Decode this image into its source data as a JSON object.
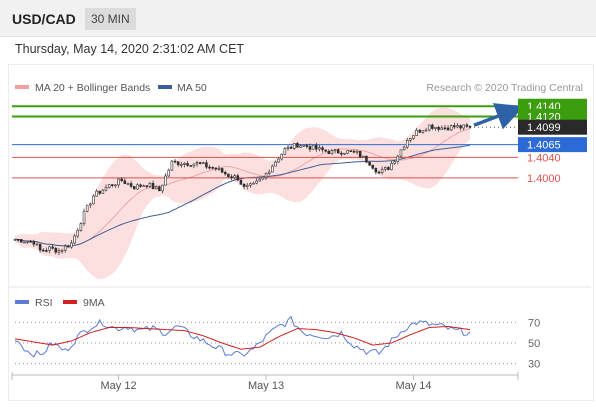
{
  "header": {
    "symbol": "USD/CAD",
    "timeframe": "30 MIN"
  },
  "date_text": "Thursday, May 14, 2020 2:31:02 AM CET",
  "colors": {
    "resistance": "#3c9d0e",
    "pivot": "#2c6bd6",
    "support": "#d9534f",
    "ma20": "#f0a0a0",
    "ma50": "#3e5f96",
    "band_fill": "#fbd9d9",
    "candle": "#2e2e2e",
    "rsi": "#5b7bd5",
    "rsi_ma": "#d02020",
    "current_price_bg": "#2a2a2a",
    "arrow": "#2e62a6"
  },
  "chart_data": [
    {
      "type": "candlestick",
      "legend": [
        {
          "label": "MA 20 + Bollinger Bands",
          "color": "#f0a0a0"
        },
        {
          "label": "MA 50",
          "color": "#3e5f96"
        }
      ],
      "watermark": "Research © 2020 Trading Central",
      "ylim": [
        1.382,
        1.416
      ],
      "x_ticks": [
        {
          "label": "May 12",
          "index": 33
        },
        {
          "label": "May 13",
          "index": 80
        },
        {
          "label": "May 14",
          "index": 127
        }
      ],
      "n_bars": 146,
      "price_path": [
        [
          0,
          1.388
        ],
        [
          6,
          1.3875
        ],
        [
          8,
          1.3858
        ],
        [
          11,
          1.3862
        ],
        [
          14,
          1.3858
        ],
        [
          18,
          1.3872
        ],
        [
          22,
          1.393
        ],
        [
          25,
          1.3965
        ],
        [
          30,
          1.3985
        ],
        [
          34,
          1.3995
        ],
        [
          38,
          1.3982
        ],
        [
          42,
          1.3988
        ],
        [
          46,
          1.3975
        ],
        [
          50,
          1.403
        ],
        [
          58,
          1.4028
        ],
        [
          64,
          1.4018
        ],
        [
          68,
          1.4005
        ],
        [
          71,
          1.4
        ],
        [
          73,
          1.398
        ],
        [
          76,
          1.3985
        ],
        [
          79,
          1.4
        ],
        [
          82,
          1.4025
        ],
        [
          86,
          1.4055
        ],
        [
          90,
          1.4065
        ],
        [
          93,
          1.4062
        ],
        [
          97,
          1.4055
        ],
        [
          101,
          1.405
        ],
        [
          105,
          1.4052
        ],
        [
          109,
          1.4048
        ],
        [
          113,
          1.403
        ],
        [
          116,
          1.401
        ],
        [
          119,
          1.402
        ],
        [
          122,
          1.4045
        ],
        [
          125,
          1.4075
        ],
        [
          128,
          1.409
        ],
        [
          132,
          1.4102
        ],
        [
          136,
          1.4098
        ],
        [
          140,
          1.41
        ],
        [
          145,
          1.4098
        ]
      ],
      "levels": [
        {
          "label": "1.4140",
          "value": 1.414,
          "kind": "resistance"
        },
        {
          "label": "1.4120",
          "value": 1.412,
          "kind": "resistance"
        },
        {
          "label": "1.4065",
          "value": 1.4065,
          "kind": "pivot"
        },
        {
          "label": "1.4040",
          "value": 1.404,
          "kind": "support"
        },
        {
          "label": "1.4000",
          "value": 1.4,
          "kind": "support"
        }
      ],
      "current_price": {
        "label": "1.4099",
        "value": 1.4099
      }
    },
    {
      "type": "line",
      "legend": [
        {
          "label": "RSI",
          "color": "#5b7bd5"
        },
        {
          "label": "9MA",
          "color": "#d02020"
        }
      ],
      "ylim": [
        20,
        80
      ],
      "y_ticks": [
        70,
        50,
        30
      ],
      "series": [
        {
          "name": "RSI",
          "points": [
            [
              0,
              55
            ],
            [
              4,
              42
            ],
            [
              8,
              38
            ],
            [
              12,
              50
            ],
            [
              16,
              42
            ],
            [
              20,
              56
            ],
            [
              24,
              66
            ],
            [
              28,
              70
            ],
            [
              32,
              64
            ],
            [
              36,
              66
            ],
            [
              40,
              62
            ],
            [
              44,
              64
            ],
            [
              48,
              60
            ],
            [
              52,
              66
            ],
            [
              56,
              58
            ],
            [
              60,
              52
            ],
            [
              64,
              46
            ],
            [
              68,
              40
            ],
            [
              72,
              38
            ],
            [
              76,
              44
            ],
            [
              80,
              56
            ],
            [
              84,
              66
            ],
            [
              88,
              72
            ],
            [
              92,
              60
            ],
            [
              96,
              58
            ],
            [
              100,
              56
            ],
            [
              104,
              60
            ],
            [
              108,
              48
            ],
            [
              112,
              42
            ],
            [
              116,
              40
            ],
            [
              120,
              52
            ],
            [
              124,
              64
            ],
            [
              128,
              70
            ],
            [
              132,
              68
            ],
            [
              136,
              66
            ],
            [
              140,
              62
            ],
            [
              145,
              60
            ]
          ]
        },
        {
          "name": "9MA",
          "points": [
            [
              0,
              54
            ],
            [
              6,
              51
            ],
            [
              12,
              48
            ],
            [
              18,
              52
            ],
            [
              24,
              60
            ],
            [
              30,
              65
            ],
            [
              36,
              65
            ],
            [
              42,
              64
            ],
            [
              48,
              63
            ],
            [
              54,
              62
            ],
            [
              60,
              57
            ],
            [
              66,
              50
            ],
            [
              72,
              44
            ],
            [
              78,
              46
            ],
            [
              84,
              56
            ],
            [
              90,
              64
            ],
            [
              96,
              63
            ],
            [
              102,
              60
            ],
            [
              108,
              55
            ],
            [
              114,
              48
            ],
            [
              120,
              50
            ],
            [
              126,
              58
            ],
            [
              132,
              65
            ],
            [
              138,
              66
            ],
            [
              145,
              63
            ]
          ]
        }
      ]
    }
  ]
}
